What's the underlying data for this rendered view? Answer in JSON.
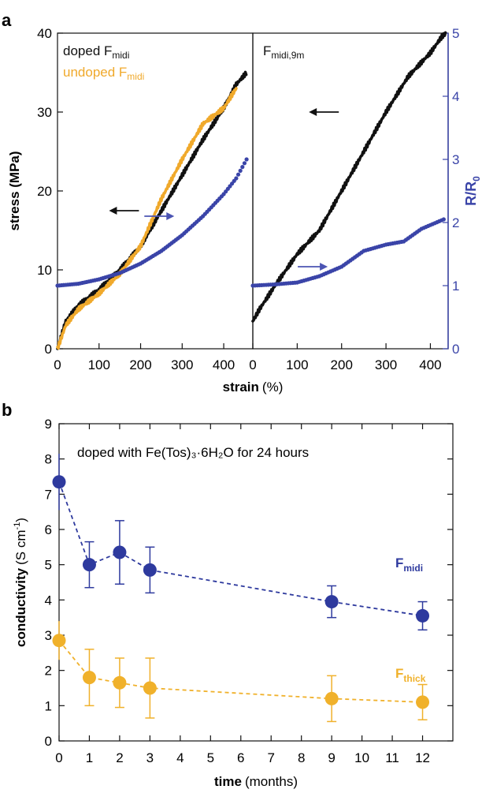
{
  "chart_data": [
    {
      "panel": "a",
      "type": "line",
      "left_panel_label": "",
      "right_panel_label": "F_midi,9m",
      "xlabel": "strain",
      "xlabel_unit": "(%)",
      "ylabel": "stress (MPa)",
      "y2label": "R/R",
      "y2label_sub": "0",
      "ylim": [
        0,
        40
      ],
      "y2lim": [
        0,
        5
      ],
      "yticks": [
        0,
        10,
        20,
        30,
        40
      ],
      "y2ticks": [
        0,
        1,
        2,
        3,
        4,
        5
      ],
      "left_xlim": [
        0,
        470
      ],
      "right_xlim": [
        0,
        440
      ],
      "xticks_left": [
        0,
        100,
        200,
        300,
        400
      ],
      "xticks_right": [
        0,
        100,
        200,
        300,
        400
      ],
      "legend": [
        {
          "base": "doped F",
          "sub": "midi",
          "color": "#111111"
        },
        {
          "base": "undoped F",
          "sub": "midi",
          "color": "#f0a92b"
        }
      ],
      "right_title": {
        "base": "F",
        "sub": "midi,9m"
      },
      "left_series": [
        {
          "name": "doped F_midi stress",
          "color": "#111111",
          "axis": "y",
          "x": [
            0,
            20,
            50,
            100,
            150,
            200,
            250,
            300,
            350,
            400,
            430,
            455
          ],
          "y": [
            0,
            3.5,
            5.5,
            7.5,
            10,
            13,
            17.5,
            22,
            26.5,
            30.5,
            33.5,
            35
          ]
        },
        {
          "name": "undoped F_midi stress",
          "color": "#f0a92b",
          "axis": "y",
          "x": [
            0,
            20,
            50,
            100,
            150,
            200,
            250,
            300,
            350,
            400,
            430
          ],
          "y": [
            0,
            3,
            5,
            7,
            9.5,
            13,
            19,
            24,
            28.5,
            30.5,
            33
          ]
        },
        {
          "name": "doped F_midi R/R0",
          "color": "#3a44a8",
          "axis": "y2",
          "x": [
            0,
            50,
            100,
            150,
            200,
            250,
            300,
            350,
            400,
            430,
            455
          ],
          "y": [
            1.0,
            1.03,
            1.1,
            1.2,
            1.35,
            1.55,
            1.8,
            2.1,
            2.45,
            2.7,
            3.0
          ]
        }
      ],
      "right_series": [
        {
          "name": "F_midi,9m stress",
          "color": "#111111",
          "axis": "y",
          "x": [
            0,
            15,
            50,
            100,
            150,
            200,
            250,
            300,
            350,
            400,
            425,
            435
          ],
          "y": [
            3.5,
            5,
            8,
            12,
            15,
            20,
            25,
            30,
            34.5,
            37.5,
            39.5,
            40
          ]
        },
        {
          "name": "F_midi,9m R/R0",
          "color": "#3a44a8",
          "axis": "y2",
          "x": [
            0,
            50,
            100,
            150,
            200,
            250,
            300,
            340,
            380,
            430
          ],
          "y": [
            1.0,
            1.02,
            1.05,
            1.15,
            1.3,
            1.55,
            1.65,
            1.7,
            1.9,
            2.05
          ]
        }
      ],
      "annotations": [
        {
          "panel": "left",
          "arrow": "left",
          "color": "#111111",
          "x": 160,
          "y": 17.5
        },
        {
          "panel": "left",
          "arrow": "right",
          "color": "#4b54b3",
          "x": 245,
          "y": 2.1
        },
        {
          "panel": "right",
          "arrow": "left",
          "color": "#111111",
          "x": 160,
          "y": 30
        },
        {
          "panel": "right",
          "arrow": "right",
          "color": "#4b54b3",
          "x": 135,
          "y": 1.3
        }
      ]
    },
    {
      "panel": "b",
      "type": "scatter",
      "annotation": "doped with Fe(Tos)₃·6H₂O for 24 hours",
      "xlabel": "time",
      "xlabel_unit": "(months)",
      "ylabel": "conductivity",
      "ylabel_unit": "(S cm",
      "ylabel_sup": "-1",
      "xlim": [
        0,
        13
      ],
      "ylim": [
        0,
        9
      ],
      "xticks": [
        0,
        1,
        2,
        3,
        4,
        5,
        6,
        7,
        8,
        9,
        10,
        11,
        12
      ],
      "yticks": [
        0,
        1,
        2,
        3,
        4,
        5,
        6,
        7,
        8,
        9
      ],
      "series": [
        {
          "name": "F_midi",
          "label_base": "F",
          "label_sub": "midi",
          "color": "#2e3a9e",
          "x": [
            0,
            1,
            2,
            3,
            9,
            12
          ],
          "y": [
            7.35,
            5.0,
            5.35,
            4.85,
            3.95,
            3.55
          ],
          "err": [
            0.8,
            0.65,
            0.9,
            0.65,
            0.45,
            0.4
          ]
        },
        {
          "name": "F_thick",
          "label_base": "F",
          "label_sub": "thick",
          "color": "#f0b12b",
          "x": [
            0,
            1,
            2,
            3,
            9,
            12
          ],
          "y": [
            2.85,
            1.8,
            1.65,
            1.5,
            1.2,
            1.1
          ],
          "err": [
            0.55,
            0.8,
            0.7,
            0.85,
            0.65,
            0.5
          ]
        }
      ]
    }
  ]
}
